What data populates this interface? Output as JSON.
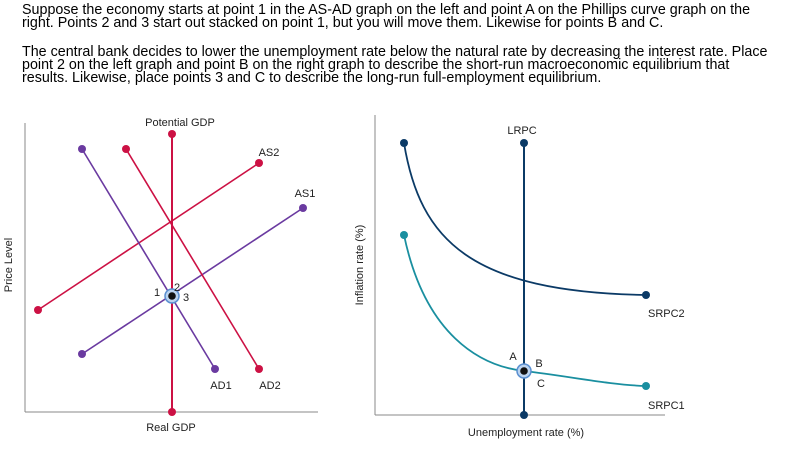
{
  "instructions": [
    "Suppose the economy starts at point 1 in the AS-AD graph on the left and point A on the Phillips curve graph on the right. Points 2 and 3 start out stacked on point 1, but you will move them. Likewise for points B and C.",
    "The central bank decides to lower the unemployment rate below the natural rate by decreasing the interest rate. Place point 2 on the left graph and point B on the right graph to describe the short-run macroeconomic equilibrium that results. Likewise, place points 3 and C to describe the long-run full-employment equilibrium."
  ],
  "left_graph": {
    "y_axis_label": "Price Level",
    "x_axis_label": "Real GDP",
    "vertical_line_label": "Potential GDP",
    "curves": {
      "as1": "AS1",
      "as2": "AS2",
      "ad1": "AD1",
      "ad2": "AD2"
    },
    "points": [
      "1",
      "2",
      "3"
    ]
  },
  "right_graph": {
    "y_axis_label": "Inflation rate (%)",
    "x_axis_label": "Unemployment rate (%)",
    "curves": {
      "lrpc": "LRPC",
      "srpc1": "SRPC1",
      "srpc2": "SRPC2"
    },
    "points": [
      "A",
      "B",
      "C"
    ]
  }
}
